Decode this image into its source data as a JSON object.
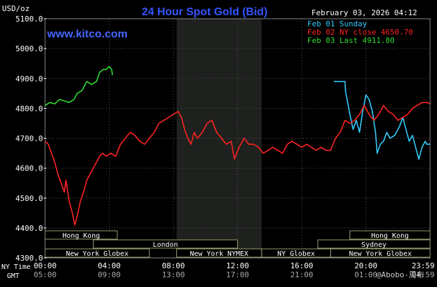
{
  "header": {
    "title": "24 Hour Spot Gold (Bid)",
    "unit": "USD/oz",
    "timestamp": "February 03, 2026 04:12",
    "brand": "www.kitco.com",
    "watermark": "@Abobo-周布"
  },
  "colors": {
    "background": "#000000",
    "plot_background": "#000000",
    "grid": "#555555",
    "title": "#3355ff",
    "brand": "#4466ff",
    "axis_text": "#ffffff",
    "nymex_band": "#1e211e",
    "session_box_fill": "#000000",
    "session_box_stroke": "#9a9a70",
    "session_text": "#ffffff"
  },
  "legend": {
    "placement": "top-right",
    "items": [
      {
        "label": "Feb 01 Sunday",
        "color": "#33ccff"
      },
      {
        "label": "Feb 02 NY close 4650.70",
        "color": "#ff2222"
      },
      {
        "label": "Feb 03 Last 4911.80",
        "color": "#33dd33"
      }
    ]
  },
  "sessions_row1": [
    {
      "label": "Hong Kong",
      "from": 0,
      "to": 4.5
    },
    {
      "label": "Hong Kong",
      "from": 19,
      "to": 24
    }
  ],
  "sessions_row2": [
    {
      "label": "London",
      "from": 3,
      "to": 12
    },
    {
      "label": "Sydney",
      "from": 17,
      "to": 24
    }
  ],
  "sessions_row3": [
    {
      "label": "New York Globex",
      "from": 0,
      "to": 6.5
    },
    {
      "label": "New York NYMEX",
      "from": 8.2,
      "to": 13.5
    },
    {
      "label": "NY Globex",
      "from": 13.5,
      "to": 17.8
    },
    {
      "label": "New York Globex",
      "from": 17.8,
      "to": 24
    }
  ],
  "time_axis": {
    "row1_label": "NY Time",
    "row2_label": "GMT",
    "ny_ticks": [
      "00:00",
      "04:00",
      "08:00",
      "12:00",
      "16:00",
      "20:00",
      "23:59"
    ],
    "gmt_ticks": [
      "05:00",
      "09:00",
      "13:00",
      "17:00",
      "21:00",
      "01:00",
      "04:59"
    ]
  },
  "chart_data": {
    "type": "line",
    "title": "24 Hour Spot Gold (Bid)",
    "ylabel": "USD/oz",
    "xlabel": "NY Time",
    "ylim": [
      4300,
      5100
    ],
    "xlim": [
      0,
      24
    ],
    "yticks": [
      "4300.0",
      "4400.0",
      "4500.0",
      "4600.0",
      "4700.0",
      "4800.0",
      "4900.0",
      "5000.0",
      "5100.0"
    ],
    "nymex_session": [
      8.2,
      13.5
    ],
    "grid": true,
    "legend": "top-right",
    "series": [
      {
        "name": "Feb 01 Sunday",
        "color": "#33ccff",
        "points": [
          [
            18.0,
            4890
          ],
          [
            18.7,
            4890
          ],
          [
            18.72,
            4860
          ],
          [
            19.0,
            4780
          ],
          [
            19.2,
            4730
          ],
          [
            19.4,
            4760
          ],
          [
            19.6,
            4720
          ],
          [
            19.8,
            4790
          ],
          [
            20.0,
            4845
          ],
          [
            20.2,
            4830
          ],
          [
            20.4,
            4790
          ],
          [
            20.6,
            4720
          ],
          [
            20.7,
            4650
          ],
          [
            20.9,
            4680
          ],
          [
            21.1,
            4690
          ],
          [
            21.3,
            4720
          ],
          [
            21.5,
            4700
          ],
          [
            21.8,
            4710
          ],
          [
            22.1,
            4740
          ],
          [
            22.3,
            4770
          ],
          [
            22.5,
            4730
          ],
          [
            22.7,
            4690
          ],
          [
            22.9,
            4710
          ],
          [
            23.1,
            4670
          ],
          [
            23.3,
            4630
          ],
          [
            23.5,
            4670
          ],
          [
            23.7,
            4690
          ],
          [
            23.8,
            4680
          ],
          [
            23.99,
            4680
          ]
        ]
      },
      {
        "name": "Feb 02 NY close 4650.70",
        "color": "#ff2222",
        "points": [
          [
            0.0,
            4690
          ],
          [
            0.2,
            4680
          ],
          [
            0.4,
            4650
          ],
          [
            0.6,
            4620
          ],
          [
            0.8,
            4580
          ],
          [
            1.0,
            4550
          ],
          [
            1.2,
            4520
          ],
          [
            1.3,
            4560
          ],
          [
            1.5,
            4490
          ],
          [
            1.7,
            4450
          ],
          [
            1.85,
            4410
          ],
          [
            2.0,
            4440
          ],
          [
            2.2,
            4490
          ],
          [
            2.4,
            4520
          ],
          [
            2.6,
            4560
          ],
          [
            2.8,
            4580
          ],
          [
            3.0,
            4600
          ],
          [
            3.2,
            4620
          ],
          [
            3.4,
            4640
          ],
          [
            3.6,
            4650
          ],
          [
            3.8,
            4640
          ],
          [
            4.1,
            4650
          ],
          [
            4.4,
            4640
          ],
          [
            4.7,
            4680
          ],
          [
            5.0,
            4700
          ],
          [
            5.3,
            4720
          ],
          [
            5.6,
            4710
          ],
          [
            5.9,
            4690
          ],
          [
            6.2,
            4680
          ],
          [
            6.5,
            4700
          ],
          [
            6.8,
            4720
          ],
          [
            7.1,
            4750
          ],
          [
            7.4,
            4760
          ],
          [
            7.7,
            4770
          ],
          [
            8.0,
            4780
          ],
          [
            8.3,
            4790
          ],
          [
            8.5,
            4770
          ],
          [
            8.7,
            4730
          ],
          [
            8.9,
            4700
          ],
          [
            9.1,
            4680
          ],
          [
            9.3,
            4720
          ],
          [
            9.5,
            4700
          ],
          [
            9.8,
            4720
          ],
          [
            10.1,
            4750
          ],
          [
            10.4,
            4760
          ],
          [
            10.7,
            4720
          ],
          [
            11.0,
            4700
          ],
          [
            11.3,
            4680
          ],
          [
            11.6,
            4690
          ],
          [
            11.8,
            4630
          ],
          [
            12.1,
            4670
          ],
          [
            12.4,
            4700
          ],
          [
            12.7,
            4680
          ],
          [
            13.0,
            4680
          ],
          [
            13.3,
            4670
          ],
          [
            13.6,
            4650
          ],
          [
            13.9,
            4660
          ],
          [
            14.2,
            4670
          ],
          [
            14.5,
            4660
          ],
          [
            14.8,
            4650
          ],
          [
            15.1,
            4680
          ],
          [
            15.4,
            4690
          ],
          [
            15.7,
            4680
          ],
          [
            16.0,
            4670
          ],
          [
            16.3,
            4680
          ],
          [
            16.6,
            4670
          ],
          [
            16.9,
            4660
          ],
          [
            17.2,
            4670
          ],
          [
            17.5,
            4660
          ],
          [
            17.8,
            4660
          ],
          [
            18.1,
            4700
          ],
          [
            18.4,
            4720
          ],
          [
            18.7,
            4760
          ],
          [
            19.0,
            4750
          ],
          [
            19.3,
            4760
          ],
          [
            19.6,
            4780
          ],
          [
            19.9,
            4810
          ],
          [
            20.2,
            4780
          ],
          [
            20.5,
            4760
          ],
          [
            20.8,
            4780
          ],
          [
            21.1,
            4810
          ],
          [
            21.4,
            4790
          ],
          [
            21.7,
            4780
          ],
          [
            22.0,
            4760
          ],
          [
            22.3,
            4770
          ],
          [
            22.6,
            4780
          ],
          [
            22.9,
            4800
          ],
          [
            23.2,
            4810
          ],
          [
            23.5,
            4820
          ],
          [
            23.8,
            4820
          ],
          [
            23.99,
            4815
          ]
        ]
      },
      {
        "name": "Feb 03 Last 4911.80",
        "color": "#33dd33",
        "points": [
          [
            0.0,
            4810
          ],
          [
            0.3,
            4820
          ],
          [
            0.6,
            4815
          ],
          [
            0.9,
            4830
          ],
          [
            1.2,
            4825
          ],
          [
            1.5,
            4820
          ],
          [
            1.8,
            4830
          ],
          [
            2.0,
            4850
          ],
          [
            2.3,
            4860
          ],
          [
            2.6,
            4890
          ],
          [
            2.9,
            4880
          ],
          [
            3.2,
            4890
          ],
          [
            3.4,
            4920
          ],
          [
            3.6,
            4930
          ],
          [
            3.8,
            4930
          ],
          [
            4.0,
            4940
          ],
          [
            4.15,
            4930
          ],
          [
            4.2,
            4911.8
          ]
        ]
      }
    ]
  }
}
